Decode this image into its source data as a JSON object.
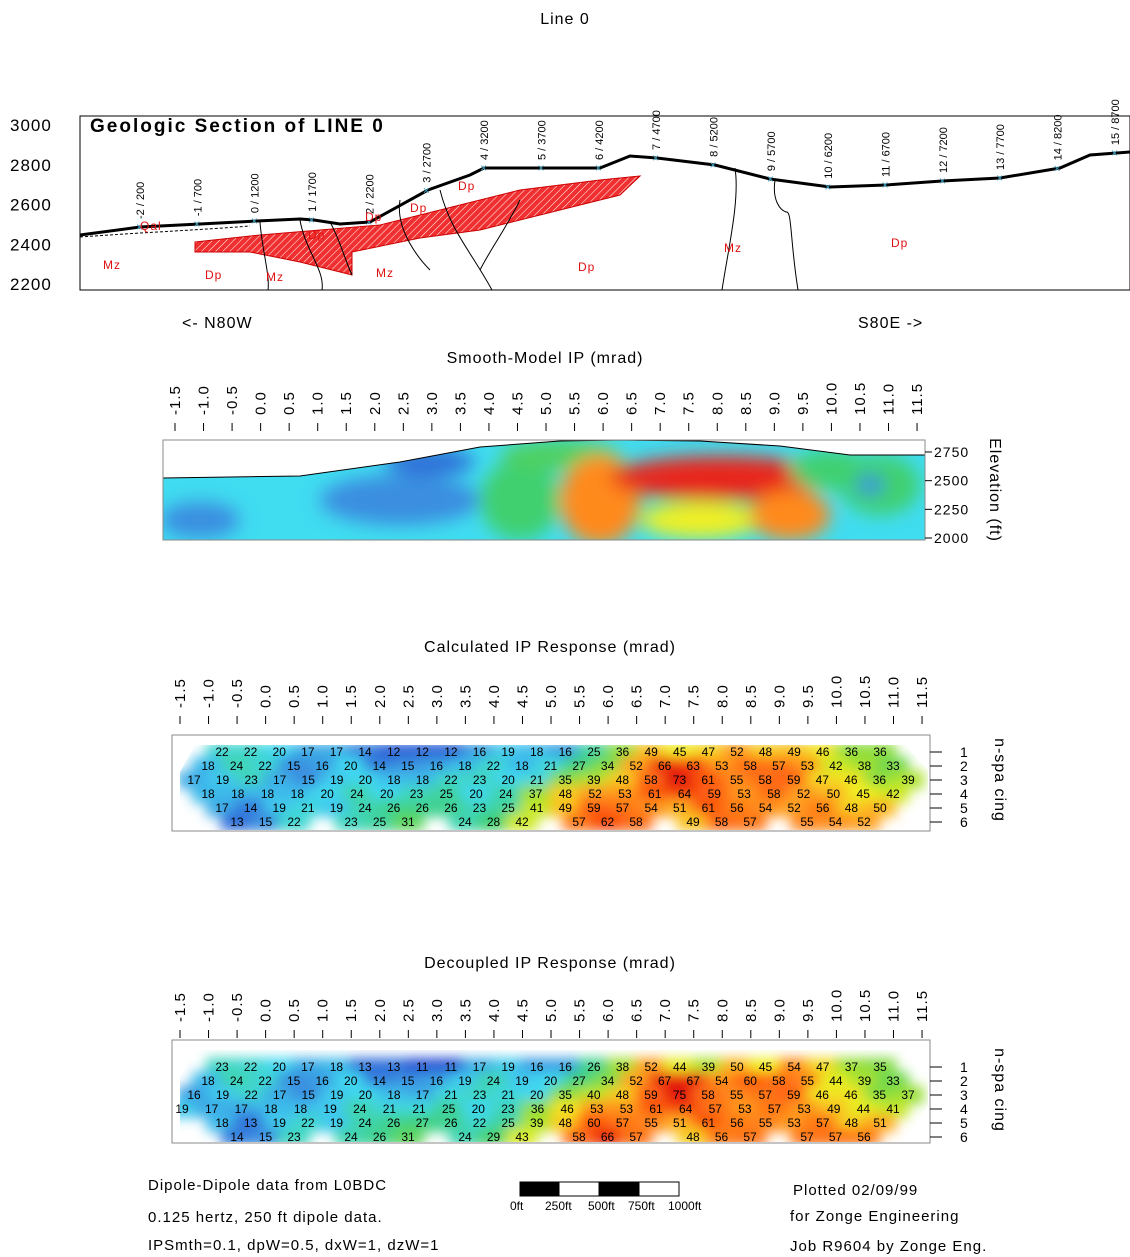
{
  "title": "Line 0",
  "geologic_section": {
    "title": "Geologic Section of LINE 0",
    "yticks": [
      3000,
      2800,
      2600,
      2400,
      2200
    ],
    "stations": [
      "-2 / 200",
      "-1 / 700",
      "0 / 1200",
      "1 / 1700",
      "2 / 2200",
      "3 / 2700",
      "4 / 3200",
      "5 / 3700",
      "6 / 4200",
      "7 / 4700",
      "8 / 5200",
      "9 / 5700",
      "10 / 6200",
      "11 / 6700",
      "12 / 7200",
      "13 / 7700",
      "14 / 8200",
      "15 / 8700"
    ],
    "units": [
      "Qal",
      "Dp",
      "Dp",
      "Dp",
      "Dp",
      "Mz",
      "Dp",
      "Mz",
      "Mz",
      "Dp",
      "Mz",
      "Dp"
    ],
    "left_direction": "<- N80W",
    "right_direction": "S80E ->"
  },
  "station_ticks": [
    -1.5,
    {
      "value": -1,
      "label": "-1.0"
    },
    -0.5,
    {
      "value": 0,
      "label": "0.0"
    },
    0.5,
    {
      "value": 1,
      "label": "1.0"
    },
    1.5,
    {
      "value": 2,
      "label": "2.0"
    },
    2.5,
    {
      "value": 3,
      "label": "3.0"
    },
    3.5,
    {
      "value": 4,
      "label": "4.0"
    },
    4.5,
    {
      "value": 5,
      "label": "5.0"
    },
    5.5,
    {
      "value": 6,
      "label": "6.0"
    },
    6.5,
    {
      "value": 7,
      "label": "7.0"
    },
    7.5,
    {
      "value": 8,
      "label": "8.0"
    },
    8.5,
    {
      "value": 9,
      "label": "9.0"
    },
    9.5,
    {
      "value": 10,
      "label": "10.0"
    },
    10.5,
    {
      "value": 11,
      "label": "11.0"
    },
    11.5
  ],
  "smooth_model": {
    "title": "Smooth-Model IP (mrad)",
    "axis_label": "Elevation (ft)",
    "yticks": [
      2750,
      2500,
      2250,
      2000
    ]
  },
  "calculated": {
    "title": "Calculated IP Response (mrad)",
    "axis_label": "n-spa cing",
    "n_labels": [
      1,
      2,
      3,
      4,
      5,
      6
    ],
    "rows": [
      [
        22,
        22,
        20,
        17,
        17,
        14,
        12,
        12,
        12,
        16,
        19,
        18,
        16,
        25,
        36,
        49,
        45,
        47,
        52,
        48,
        49,
        46,
        36,
        36
      ],
      [
        18,
        24,
        22,
        15,
        16,
        20,
        14,
        15,
        16,
        18,
        22,
        18,
        21,
        27,
        34,
        52,
        66,
        63,
        53,
        58,
        57,
        53,
        42,
        38,
        33
      ],
      [
        17,
        19,
        23,
        17,
        15,
        19,
        20,
        18,
        18,
        22,
        23,
        20,
        21,
        35,
        39,
        48,
        58,
        73,
        61,
        55,
        58,
        59,
        47,
        46,
        36,
        39
      ],
      [
        18,
        18,
        18,
        18,
        20,
        24,
        20,
        23,
        25,
        20,
        24,
        37,
        48,
        52,
        53,
        61,
        64,
        59,
        53,
        58,
        52,
        50,
        45,
        42
      ],
      [
        17,
        14,
        19,
        21,
        19,
        24,
        26,
        26,
        26,
        23,
        25,
        41,
        49,
        59,
        57,
        54,
        51,
        61,
        56,
        54,
        52,
        56,
        48,
        50
      ],
      [
        13,
        15,
        22,
        23,
        25,
        31,
        24,
        28,
        42,
        57,
        62,
        58,
        49,
        58,
        57,
        55,
        54,
        52
      ]
    ]
  },
  "decoupled": {
    "title": "Decoupled IP Response (mrad)",
    "axis_label": "n-spa cing",
    "n_labels": [
      1,
      2,
      3,
      4,
      5,
      6
    ],
    "rows": [
      [
        23,
        22,
        20,
        17,
        18,
        13,
        13,
        11,
        11,
        17,
        19,
        16,
        16,
        26,
        38,
        52,
        44,
        39,
        50,
        45,
        54,
        47,
        37,
        35
      ],
      [
        18,
        24,
        22,
        15,
        16,
        20,
        14,
        15,
        16,
        19,
        24,
        19,
        20,
        27,
        34,
        52,
        67,
        67,
        54,
        60,
        58,
        55,
        44,
        39,
        33
      ],
      [
        16,
        19,
        22,
        17,
        15,
        19,
        20,
        18,
        17,
        21,
        23,
        21,
        20,
        35,
        40,
        48,
        59,
        75,
        58,
        55,
        57,
        59,
        46,
        46,
        35,
        37
      ],
      [
        19,
        17,
        17,
        18,
        18,
        19,
        24,
        21,
        21,
        25,
        20,
        23,
        36,
        46,
        53,
        53,
        61,
        64,
        57,
        53,
        57,
        53,
        49,
        44,
        41
      ],
      [
        18,
        13,
        19,
        22,
        19,
        24,
        26,
        27,
        26,
        22,
        25,
        39,
        48,
        60,
        57,
        55,
        51,
        61,
        56,
        55,
        53,
        57,
        48,
        51
      ],
      [
        14,
        15,
        23,
        24,
        26,
        31,
        24,
        29,
        43,
        58,
        66,
        57,
        48,
        56,
        57,
        57,
        57,
        56
      ]
    ]
  },
  "footer": {
    "left": [
      "Dipole-Dipole data from L0BDC",
      "0.125 hertz, 250 ft dipole data.",
      "IPSmth=0.1, dpW=0.5, dxW=1, dzW=1"
    ],
    "scale_labels": [
      "0ft",
      "250ft",
      "500ft",
      "750ft",
      "1000ft"
    ],
    "right": [
      "Plotted 02/09/99",
      "for Zonge Engineering",
      "Job R9604 by Zonge Eng."
    ]
  }
}
